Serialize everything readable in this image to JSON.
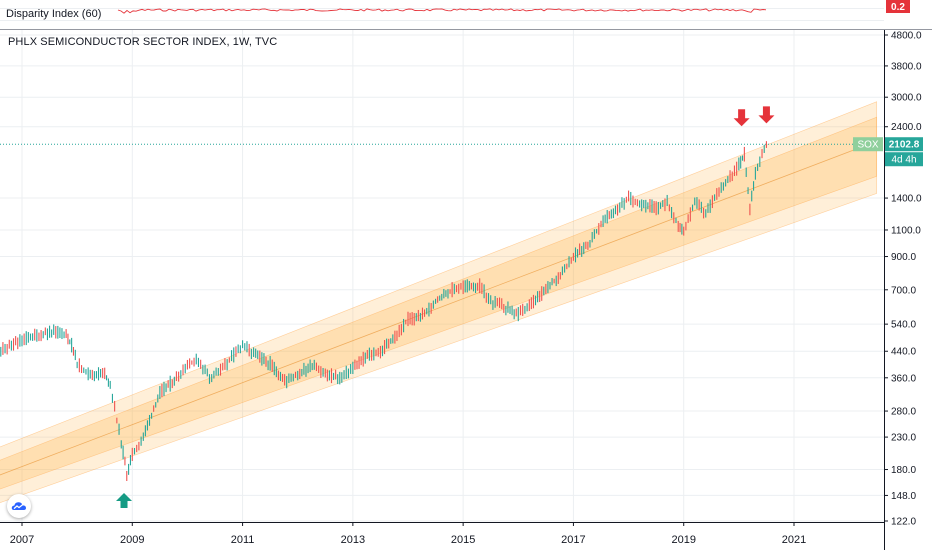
{
  "indicator": {
    "label": "Disparity Index (60)",
    "value": "0.2",
    "color": "#e5333a"
  },
  "chart_data": {
    "type": "line",
    "title": "PHLX SEMICONDUCTOR SECTOR INDEX, 1W, TVC",
    "symbol": "SOX",
    "last_price": "2102.8",
    "countdown": "4d 4h",
    "y_scale": "log",
    "ylim": [
      120,
      5000
    ],
    "y_ticks": [
      "4800.0",
      "3800.0",
      "3000.0",
      "2400.0",
      "1400.0",
      "1100.0",
      "900.0",
      "700.0",
      "540.0",
      "440.0",
      "360.0",
      "280.0",
      "230.0",
      "180.0",
      "148.0",
      "122.0"
    ],
    "x_ticks": [
      "2007",
      "2009",
      "2011",
      "2013",
      "2015",
      "2017",
      "2019",
      "2021"
    ],
    "series": [
      {
        "x": [
          2006.5,
          2007.0,
          2007.5,
          2007.8,
          2007.9,
          2008.0,
          2008.2,
          2008.5,
          2008.6,
          2008.8,
          2008.9,
          2009.0,
          2009.2,
          2009.5,
          2009.8,
          2010.0,
          2010.2,
          2010.4,
          2010.6,
          2010.8,
          2011.0,
          2011.2,
          2011.5,
          2011.8,
          2012.0,
          2012.3,
          2012.5,
          2012.8,
          2013.0,
          2013.3,
          2013.5,
          2013.8,
          2014.0,
          2014.3,
          2014.5,
          2014.8,
          2015.0,
          2015.3,
          2015.5,
          2015.7,
          2016.0,
          2016.2,
          2016.5,
          2016.8,
          2017.0,
          2017.3,
          2017.5,
          2017.8,
          2018.0,
          2018.2,
          2018.5,
          2018.7,
          2018.9,
          2019.0,
          2019.2,
          2019.4,
          2019.6,
          2019.8,
          2020.0,
          2020.1,
          2020.2,
          2020.3,
          2020.5
        ],
        "values": [
          430,
          480,
          510,
          500,
          460,
          400,
          370,
          370,
          340,
          220,
          175,
          200,
          230,
          320,
          360,
          400,
          410,
          360,
          380,
          420,
          460,
          430,
          400,
          350,
          370,
          400,
          370,
          360,
          390,
          430,
          440,
          500,
          560,
          580,
          640,
          700,
          720,
          720,
          640,
          620,
          580,
          620,
          700,
          800,
          900,
          1000,
          1150,
          1300,
          1400,
          1350,
          1300,
          1350,
          1150,
          1100,
          1350,
          1250,
          1450,
          1600,
          1800,
          1950,
          1300,
          1700,
          2100
        ]
      }
    ],
    "channel_bands": [
      {
        "x": [
          2006.5,
          2022.5
        ],
        "upper": [
          210,
          2900
        ],
        "lower": [
          138,
          1450
        ]
      },
      {
        "x": [
          2006.5,
          2022.5
        ],
        "upper": [
          190,
          2580
        ],
        "lower": [
          153,
          1650
        ]
      }
    ],
    "channel_mid": {
      "x": [
        2006.5,
        2022.5
      ],
      "values": [
        170,
        2150
      ]
    },
    "annotations": [
      {
        "type": "arrow-up",
        "x": 2008.85,
        "y": 165,
        "color": "#159b84"
      },
      {
        "type": "arrow-down",
        "x": 2020.05,
        "y": 2250,
        "color": "#e5333a"
      },
      {
        "type": "arrow-down",
        "x": 2020.5,
        "y": 2300,
        "color": "#e5333a"
      }
    ]
  }
}
